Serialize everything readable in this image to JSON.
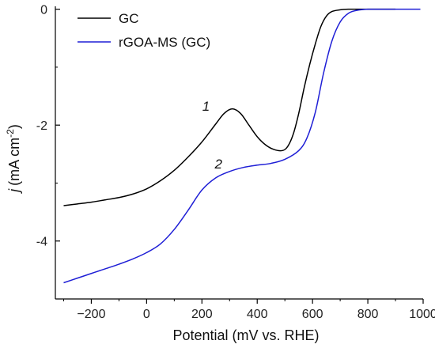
{
  "chart_data": {
    "type": "line",
    "xlabel": "Potential (mV vs. RHE)",
    "ylabel": {
      "symbol": "j",
      "units": "(mA cm",
      "exponent": "-2",
      "close": ")"
    },
    "xlim": [
      -330,
      1000
    ],
    "ylim": [
      -5.0,
      0.05
    ],
    "x_ticks": [
      -200,
      0,
      200,
      400,
      600,
      800,
      1000
    ],
    "x_tick_labels": [
      "−200",
      "0",
      "200",
      "400",
      "600",
      "800",
      "1000"
    ],
    "y_ticks": [
      0,
      -2,
      -4
    ],
    "y_tick_labels": [
      "0",
      "-2",
      "-4"
    ],
    "y_minor_ticks": [
      -1,
      -3
    ],
    "grid": false,
    "legend_position": "top-left",
    "series": [
      {
        "name": "GC",
        "color": "#000000",
        "x": [
          -300,
          -250,
          -200,
          -150,
          -100,
          -50,
          0,
          50,
          100,
          150,
          200,
          250,
          280,
          310,
          340,
          370,
          400,
          430,
          460,
          490,
          510,
          530,
          550,
          570,
          590,
          610,
          630,
          650,
          670,
          700,
          730,
          760,
          800,
          850,
          900
        ],
        "y": [
          -3.39,
          -3.36,
          -3.33,
          -3.29,
          -3.25,
          -3.19,
          -3.1,
          -2.96,
          -2.78,
          -2.55,
          -2.29,
          -1.98,
          -1.8,
          -1.72,
          -1.8,
          -2.0,
          -2.2,
          -2.34,
          -2.42,
          -2.44,
          -2.37,
          -2.16,
          -1.8,
          -1.35,
          -0.95,
          -0.6,
          -0.3,
          -0.12,
          -0.04,
          -0.01,
          0.0,
          0.0,
          0.0,
          0.0,
          0.0
        ]
      },
      {
        "name": "rGOA-MS (GC)",
        "color": "#1f1fd6",
        "x": [
          -300,
          -250,
          -200,
          -150,
          -100,
          -50,
          0,
          50,
          100,
          150,
          200,
          250,
          300,
          350,
          400,
          450,
          500,
          550,
          580,
          610,
          640,
          670,
          700,
          730,
          760,
          800,
          850,
          900,
          990
        ],
        "y": [
          -4.72,
          -4.64,
          -4.56,
          -4.48,
          -4.4,
          -4.31,
          -4.2,
          -4.05,
          -3.8,
          -3.47,
          -3.12,
          -2.91,
          -2.8,
          -2.73,
          -2.69,
          -2.66,
          -2.59,
          -2.44,
          -2.22,
          -1.78,
          -1.1,
          -0.55,
          -0.22,
          -0.07,
          -0.02,
          0.0,
          0.0,
          0.0,
          0.0
        ]
      }
    ],
    "annotations": [
      {
        "text": "1",
        "x": 215,
        "y": -1.75
      },
      {
        "text": "2",
        "x": 260,
        "y": -2.75
      }
    ]
  }
}
